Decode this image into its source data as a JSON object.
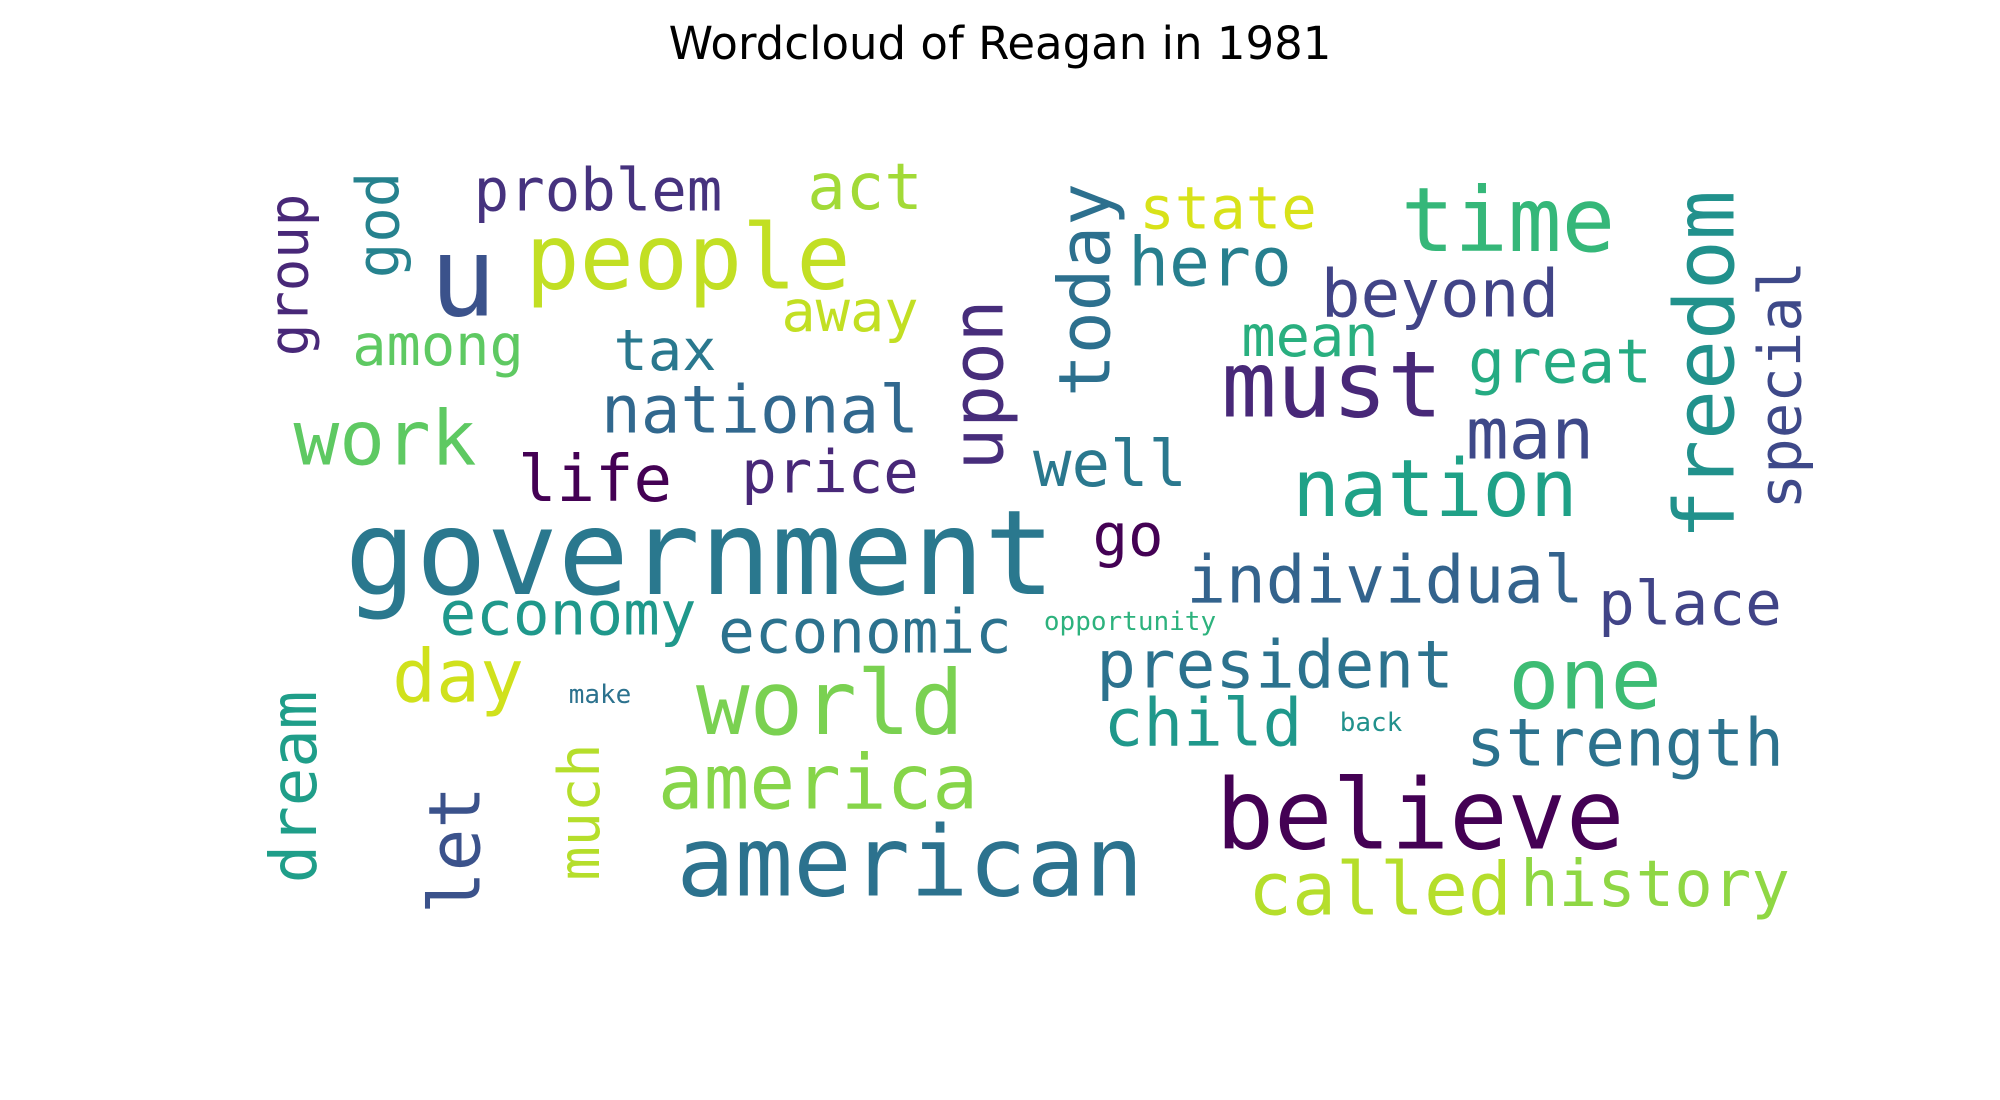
{
  "chart_data": {
    "type": "wordcloud",
    "title": "Wordcloud of Reagan in 1981",
    "words": [
      {
        "text": "government",
        "weight": 100,
        "color": "#2a788e",
        "orientation": "horizontal"
      },
      {
        "text": "u",
        "weight": 94,
        "color": "#3b528b",
        "orientation": "horizontal"
      },
      {
        "text": "american",
        "weight": 82,
        "color": "#2c728e",
        "orientation": "horizontal"
      },
      {
        "text": "believe",
        "weight": 82,
        "color": "#440154",
        "orientation": "horizontal"
      },
      {
        "text": "must",
        "weight": 78,
        "color": "#482878",
        "orientation": "horizontal"
      },
      {
        "text": "people",
        "weight": 76,
        "color": "#c2df23",
        "orientation": "horizontal"
      },
      {
        "text": "world",
        "weight": 75,
        "color": "#7ad151",
        "orientation": "horizontal"
      },
      {
        "text": "time",
        "weight": 75,
        "color": "#35b779",
        "orientation": "horizontal"
      },
      {
        "text": "one",
        "weight": 72,
        "color": "#3dbc74",
        "orientation": "horizontal"
      },
      {
        "text": "freedom",
        "weight": 70,
        "color": "#21918c",
        "orientation": "vertical"
      },
      {
        "text": "nation",
        "weight": 67,
        "color": "#1fa187",
        "orientation": "horizontal"
      },
      {
        "text": "america",
        "weight": 64,
        "color": "#86d549",
        "orientation": "horizontal"
      },
      {
        "text": "work",
        "weight": 64,
        "color": "#5ec962",
        "orientation": "horizontal"
      },
      {
        "text": "called",
        "weight": 62,
        "color": "#b5de2b",
        "orientation": "horizontal"
      },
      {
        "text": "day",
        "weight": 62,
        "color": "#d0e11c",
        "orientation": "horizontal"
      },
      {
        "text": "today",
        "weight": 60,
        "color": "#2d708e",
        "orientation": "vertical"
      },
      {
        "text": "upon",
        "weight": 60,
        "color": "#472d7b",
        "orientation": "vertical"
      },
      {
        "text": "man",
        "weight": 60,
        "color": "#3e4989",
        "orientation": "horizontal"
      },
      {
        "text": "let",
        "weight": 60,
        "color": "#3b528b",
        "orientation": "vertical"
      },
      {
        "text": "hero",
        "weight": 58,
        "color": "#277f8e",
        "orientation": "horizontal"
      },
      {
        "text": "beyond",
        "weight": 56,
        "color": "#414487",
        "orientation": "horizontal"
      },
      {
        "text": "national",
        "weight": 56,
        "color": "#31688e",
        "orientation": "horizontal"
      },
      {
        "text": "strength",
        "weight": 56,
        "color": "#2c728e",
        "orientation": "horizontal"
      },
      {
        "text": "individual",
        "weight": 56,
        "color": "#33638d",
        "orientation": "horizontal"
      },
      {
        "text": "president",
        "weight": 56,
        "color": "#2c728e",
        "orientation": "horizontal"
      },
      {
        "text": "child",
        "weight": 56,
        "color": "#1f988b",
        "orientation": "horizontal"
      },
      {
        "text": "history",
        "weight": 54,
        "color": "#8fd744",
        "orientation": "horizontal"
      },
      {
        "text": "act",
        "weight": 54,
        "color": "#a2da37",
        "orientation": "horizontal"
      },
      {
        "text": "life",
        "weight": 54,
        "color": "#440154",
        "orientation": "horizontal"
      },
      {
        "text": "well",
        "weight": 54,
        "color": "#2a788e",
        "orientation": "horizontal"
      },
      {
        "text": "dream",
        "weight": 54,
        "color": "#1f9e89",
        "orientation": "vertical"
      },
      {
        "text": "great",
        "weight": 52,
        "color": "#25ab82",
        "orientation": "horizontal"
      },
      {
        "text": "place",
        "weight": 52,
        "color": "#414487",
        "orientation": "horizontal"
      },
      {
        "text": "economic",
        "weight": 52,
        "color": "#2c728e",
        "orientation": "horizontal"
      },
      {
        "text": "economy",
        "weight": 52,
        "color": "#1f988b",
        "orientation": "horizontal"
      },
      {
        "text": "problem",
        "weight": 50,
        "color": "#46327e",
        "orientation": "horizontal"
      },
      {
        "text": "go",
        "weight": 50,
        "color": "#440154",
        "orientation": "horizontal"
      },
      {
        "text": "price",
        "weight": 50,
        "color": "#482878",
        "orientation": "horizontal"
      },
      {
        "text": "state",
        "weight": 50,
        "color": "#d8e219",
        "orientation": "horizontal"
      },
      {
        "text": "special",
        "weight": 50,
        "color": "#3e4989",
        "orientation": "vertical"
      },
      {
        "text": "god",
        "weight": 50,
        "color": "#26828e",
        "orientation": "vertical"
      },
      {
        "text": "away",
        "weight": 48,
        "color": "#c2df23",
        "orientation": "horizontal"
      },
      {
        "text": "tax",
        "weight": 48,
        "color": "#2a788e",
        "orientation": "horizontal"
      },
      {
        "text": "among",
        "weight": 48,
        "color": "#5ec962",
        "orientation": "horizontal"
      },
      {
        "text": "mean",
        "weight": 48,
        "color": "#29af7f",
        "orientation": "horizontal"
      },
      {
        "text": "much",
        "weight": 48,
        "color": "#b5de2b",
        "orientation": "vertical"
      },
      {
        "text": "group",
        "weight": 46,
        "color": "#482878",
        "orientation": "vertical"
      },
      {
        "text": "opportunity",
        "weight": 22,
        "color": "#2db27d",
        "orientation": "horizontal"
      },
      {
        "text": "make",
        "weight": 22,
        "color": "#2c728e",
        "orientation": "horizontal"
      },
      {
        "text": "back",
        "weight": 22,
        "color": "#21918c",
        "orientation": "horizontal"
      }
    ]
  }
}
